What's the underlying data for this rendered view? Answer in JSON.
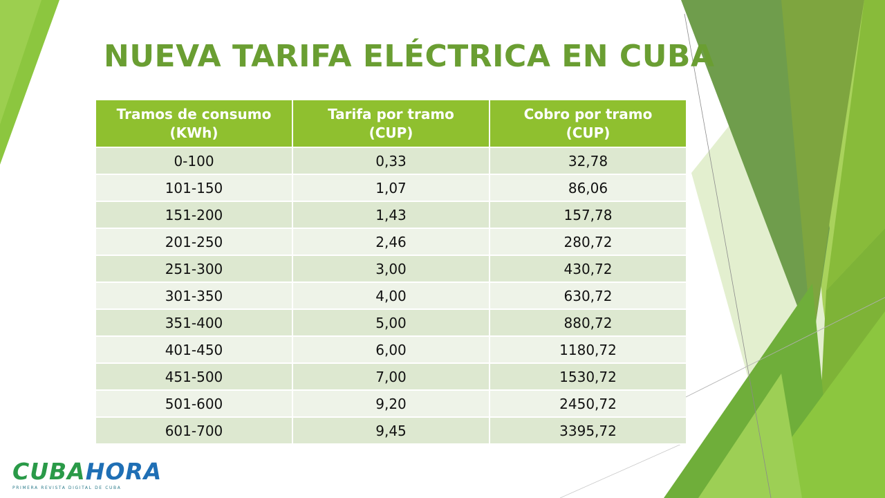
{
  "slide": {
    "title": "NUEVA TARIFA ELÉCTRICA EN CUBA"
  },
  "table": {
    "headers": [
      {
        "line1": "Tramos de consumo",
        "line2": "(KWh)"
      },
      {
        "line1": "Tarifa por tramo",
        "line2": "(CUP)"
      },
      {
        "line1": "Cobro por tramo",
        "line2": "(CUP)"
      }
    ],
    "rows": [
      [
        "0-100",
        "0,33",
        "32,78"
      ],
      [
        "101-150",
        "1,07",
        "86,06"
      ],
      [
        "151-200",
        "1,43",
        "157,78"
      ],
      [
        "201-250",
        "2,46",
        "280,72"
      ],
      [
        "251-300",
        "3,00",
        "430,72"
      ],
      [
        "301-350",
        "4,00",
        "630,72"
      ],
      [
        "351-400",
        "5,00",
        "880,72"
      ],
      [
        "401-450",
        "6,00",
        "1180,72"
      ],
      [
        "451-500",
        "7,00",
        "1530,72"
      ],
      [
        "501-600",
        "9,20",
        "2450,72"
      ],
      [
        "601-700",
        "9,45",
        "3395,72"
      ]
    ]
  },
  "logo": {
    "word_part1": "CUBA",
    "word_part2": "HORA",
    "tagline": "PRIMERA REVISTA DIGITAL DE CUBA"
  },
  "colors": {
    "title": "#6a9e32",
    "header_bg": "#8fc02f",
    "row_odd": "#dde8d0",
    "row_even": "#eef3e8"
  }
}
